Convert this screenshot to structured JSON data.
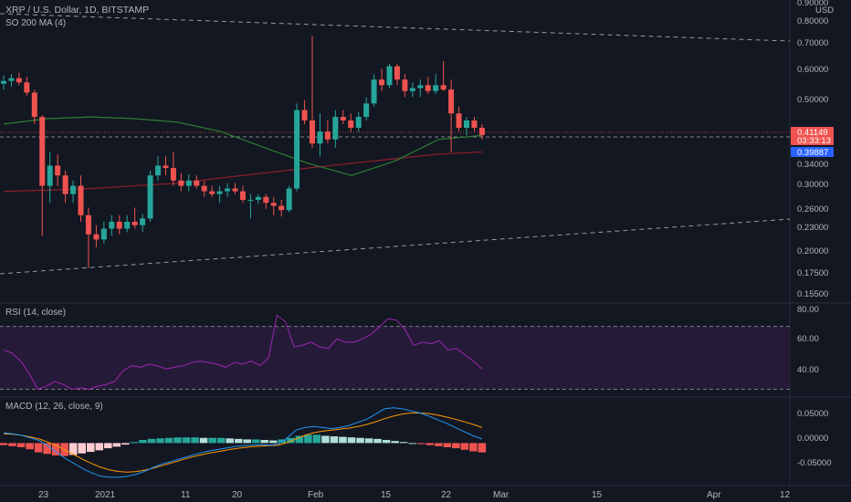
{
  "header": {
    "symbol_line": "XRP / U.S. Dollar, 1D, BITSTAMP",
    "ma_label": "SO 200 MA (4)",
    "currency": "USD"
  },
  "price_axis": {
    "ticks": [
      "0.90000",
      "0.80000",
      "0.70000",
      "0.60000",
      "0.50000",
      "0.34000",
      "0.30000",
      "0.26000",
      "0.23000",
      "0.20000",
      "0.17500",
      "0.15500"
    ],
    "last_price": "0.41149",
    "countdown": "03:33:13",
    "ma_value": "0.39887"
  },
  "rsi": {
    "label": "RSI (14, close)",
    "ticks": [
      "80.00",
      "60.00",
      "40.00"
    ]
  },
  "macd": {
    "label": "MACD (12, 26, close, 9)",
    "ticks": [
      "0.05000",
      "0.00000",
      "-0.05000"
    ]
  },
  "time_axis": {
    "labels": [
      "23",
      "2021",
      "11",
      "20",
      "Feb",
      "15",
      "22",
      "Mar",
      "15",
      "Apr",
      "12"
    ]
  },
  "colors": {
    "background": "#131722",
    "up": "#26a69a",
    "down": "#ef5350",
    "ma_green": "#2e7d32",
    "ma_red": "#8b1f2a",
    "rsi_line": "#9c27b0",
    "rsi_band": "#2a1b3d",
    "macd_line": "#2196f3",
    "signal_line": "#ff9800",
    "hist_up": "#26a69a",
    "hist_up_light": "#b2dfdb",
    "hist_down": "#ef5350",
    "hist_down_light": "#ffcdd2",
    "price_tag": "#ef5350",
    "ma_tag": "#2962ff"
  },
  "chart_data": [
    {
      "type": "candlestick",
      "series_name": "XRP / U.S. Dollar",
      "ohlc": [
        [
          0.565,
          0.595,
          0.545,
          0.575
        ],
        [
          0.575,
          0.6,
          0.555,
          0.585
        ],
        [
          0.585,
          0.605,
          0.56,
          0.57
        ],
        [
          0.57,
          0.59,
          0.525,
          0.535
        ],
        [
          0.535,
          0.545,
          0.44,
          0.46
        ],
        [
          0.46,
          0.465,
          0.22,
          0.3
        ],
        [
          0.3,
          0.37,
          0.27,
          0.34
        ],
        [
          0.34,
          0.365,
          0.3,
          0.32
        ],
        [
          0.32,
          0.33,
          0.27,
          0.285
        ],
        [
          0.285,
          0.31,
          0.27,
          0.3
        ],
        [
          0.3,
          0.32,
          0.24,
          0.25
        ],
        [
          0.25,
          0.262,
          0.18,
          0.222
        ],
        [
          0.222,
          0.235,
          0.205,
          0.215
        ],
        [
          0.215,
          0.24,
          0.21,
          0.23
        ],
        [
          0.23,
          0.25,
          0.22,
          0.24
        ],
        [
          0.24,
          0.25,
          0.222,
          0.23
        ],
        [
          0.23,
          0.25,
          0.225,
          0.24
        ],
        [
          0.24,
          0.262,
          0.23,
          0.235
        ],
        [
          0.235,
          0.252,
          0.225,
          0.245
        ],
        [
          0.245,
          0.33,
          0.24,
          0.32
        ],
        [
          0.32,
          0.36,
          0.31,
          0.34
        ],
        [
          0.34,
          0.36,
          0.32,
          0.335
        ],
        [
          0.335,
          0.37,
          0.3,
          0.31
        ],
        [
          0.31,
          0.325,
          0.29,
          0.3
        ],
        [
          0.3,
          0.322,
          0.29,
          0.31
        ],
        [
          0.31,
          0.32,
          0.295,
          0.3
        ],
        [
          0.3,
          0.31,
          0.28,
          0.29
        ],
        [
          0.29,
          0.3,
          0.28,
          0.285
        ],
        [
          0.285,
          0.3,
          0.27,
          0.29
        ],
        [
          0.29,
          0.305,
          0.28,
          0.295
        ],
        [
          0.295,
          0.305,
          0.285,
          0.29
        ],
        [
          0.29,
          0.3,
          0.27,
          0.275
        ],
        [
          0.275,
          0.285,
          0.245,
          0.275
        ],
        [
          0.275,
          0.285,
          0.268,
          0.28
        ],
        [
          0.28,
          0.285,
          0.26,
          0.27
        ],
        [
          0.27,
          0.28,
          0.25,
          0.265
        ],
        [
          0.265,
          0.275,
          0.248,
          0.258
        ],
        [
          0.258,
          0.3,
          0.255,
          0.295
        ],
        [
          0.295,
          0.5,
          0.29,
          0.48
        ],
        [
          0.48,
          0.51,
          0.44,
          0.45
        ],
        [
          0.45,
          0.76,
          0.38,
          0.39
        ],
        [
          0.39,
          0.47,
          0.36,
          0.42
        ],
        [
          0.42,
          0.45,
          0.39,
          0.4
        ],
        [
          0.4,
          0.48,
          0.38,
          0.46
        ],
        [
          0.46,
          0.48,
          0.44,
          0.45
        ],
        [
          0.45,
          0.47,
          0.42,
          0.43
        ],
        [
          0.43,
          0.475,
          0.42,
          0.46
        ],
        [
          0.46,
          0.52,
          0.45,
          0.5
        ],
        [
          0.5,
          0.6,
          0.49,
          0.58
        ],
        [
          0.58,
          0.62,
          0.54,
          0.56
        ],
        [
          0.56,
          0.64,
          0.55,
          0.63
        ],
        [
          0.63,
          0.64,
          0.56,
          0.58
        ],
        [
          0.58,
          0.6,
          0.52,
          0.54
        ],
        [
          0.54,
          0.57,
          0.52,
          0.55
        ],
        [
          0.55,
          0.58,
          0.52,
          0.56
        ],
        [
          0.56,
          0.59,
          0.53,
          0.54
        ],
        [
          0.54,
          0.6,
          0.53,
          0.56
        ],
        [
          0.56,
          0.65,
          0.54,
          0.545
        ],
        [
          0.545,
          0.58,
          0.37,
          0.47
        ],
        [
          0.47,
          0.49,
          0.42,
          0.43
        ],
        [
          0.43,
          0.46,
          0.41,
          0.45
        ],
        [
          0.45,
          0.46,
          0.42,
          0.43
        ],
        [
          0.43,
          0.44,
          0.4,
          0.411
        ]
      ],
      "ma200_green": [
        0.44,
        0.455,
        0.46,
        0.455,
        0.445,
        0.42,
        0.38,
        0.345,
        0.32,
        0.35,
        0.4,
        0.41
      ],
      "ma200_red": [
        0.29,
        0.292,
        0.295,
        0.3,
        0.305,
        0.315,
        0.325,
        0.335,
        0.345,
        0.355,
        0.365,
        0.37
      ],
      "last_price": 0.41149,
      "ma_value": 0.39887
    },
    {
      "type": "line",
      "series_name": "RSI (14, close)",
      "ylim": [
        28,
        82
      ],
      "levels": [
        70,
        30
      ],
      "values": [
        55,
        53,
        48,
        40,
        30,
        32,
        35,
        33,
        30,
        31,
        30,
        32,
        33,
        35,
        42,
        45,
        44,
        46,
        45,
        43,
        44,
        45,
        47,
        48,
        47,
        46,
        44,
        47,
        46,
        48,
        45,
        50,
        77,
        73,
        57,
        58,
        60,
        57,
        56,
        62,
        60,
        60,
        62,
        65,
        70,
        75,
        74,
        68,
        58,
        60,
        59,
        61,
        55,
        56,
        52,
        48,
        43
      ]
    },
    {
      "type": "bar+line",
      "series_name": "MACD (12, 26, close, 9)",
      "ylim": [
        -0.075,
        0.08
      ],
      "histogram": [
        -0.004,
        -0.006,
        -0.008,
        -0.012,
        -0.018,
        -0.021,
        -0.024,
        -0.025,
        -0.023,
        -0.02,
        -0.017,
        -0.014,
        -0.01,
        -0.007,
        -0.003,
        0.002,
        0.006,
        0.008,
        0.009,
        0.01,
        0.011,
        0.011,
        0.011,
        0.01,
        0.01,
        0.01,
        0.009,
        0.008,
        0.007,
        0.007,
        0.006,
        0.005,
        0.007,
        0.01,
        0.014,
        0.016,
        0.016,
        0.014,
        0.013,
        0.012,
        0.011,
        0.01,
        0.009,
        0.008,
        0.006,
        0.004,
        0.002,
        0.0,
        -0.002,
        -0.004,
        -0.006,
        -0.008,
        -0.01,
        -0.013,
        -0.016,
        -0.018
      ],
      "macd": [
        0.02,
        0.018,
        0.015,
        0.01,
        0.005,
        -0.005,
        -0.018,
        -0.03,
        -0.04,
        -0.05,
        -0.058,
        -0.064,
        -0.066,
        -0.066,
        -0.064,
        -0.06,
        -0.054,
        -0.046,
        -0.04,
        -0.035,
        -0.03,
        -0.025,
        -0.02,
        -0.016,
        -0.013,
        -0.01,
        -0.007,
        -0.005,
        -0.004,
        -0.003,
        -0.004,
        -0.002,
        0.01,
        0.025,
        0.03,
        0.032,
        0.03,
        0.028,
        0.03,
        0.034,
        0.04,
        0.046,
        0.056,
        0.066,
        0.068,
        0.066,
        0.062,
        0.058,
        0.052,
        0.045,
        0.038,
        0.03,
        0.022,
        0.014,
        0.008
      ],
      "signal": [
        0.018,
        0.017,
        0.015,
        0.012,
        0.008,
        0.002,
        -0.005,
        -0.014,
        -0.023,
        -0.032,
        -0.04,
        -0.047,
        -0.052,
        -0.055,
        -0.056,
        -0.055,
        -0.052,
        -0.048,
        -0.043,
        -0.038,
        -0.033,
        -0.028,
        -0.024,
        -0.02,
        -0.017,
        -0.014,
        -0.011,
        -0.009,
        -0.007,
        -0.006,
        -0.005,
        -0.004,
        0.001,
        0.008,
        0.015,
        0.02,
        0.023,
        0.025,
        0.027,
        0.029,
        0.032,
        0.036,
        0.041,
        0.047,
        0.052,
        0.056,
        0.058,
        0.058,
        0.057,
        0.054,
        0.05,
        0.046,
        0.041,
        0.036,
        0.03
      ]
    }
  ]
}
